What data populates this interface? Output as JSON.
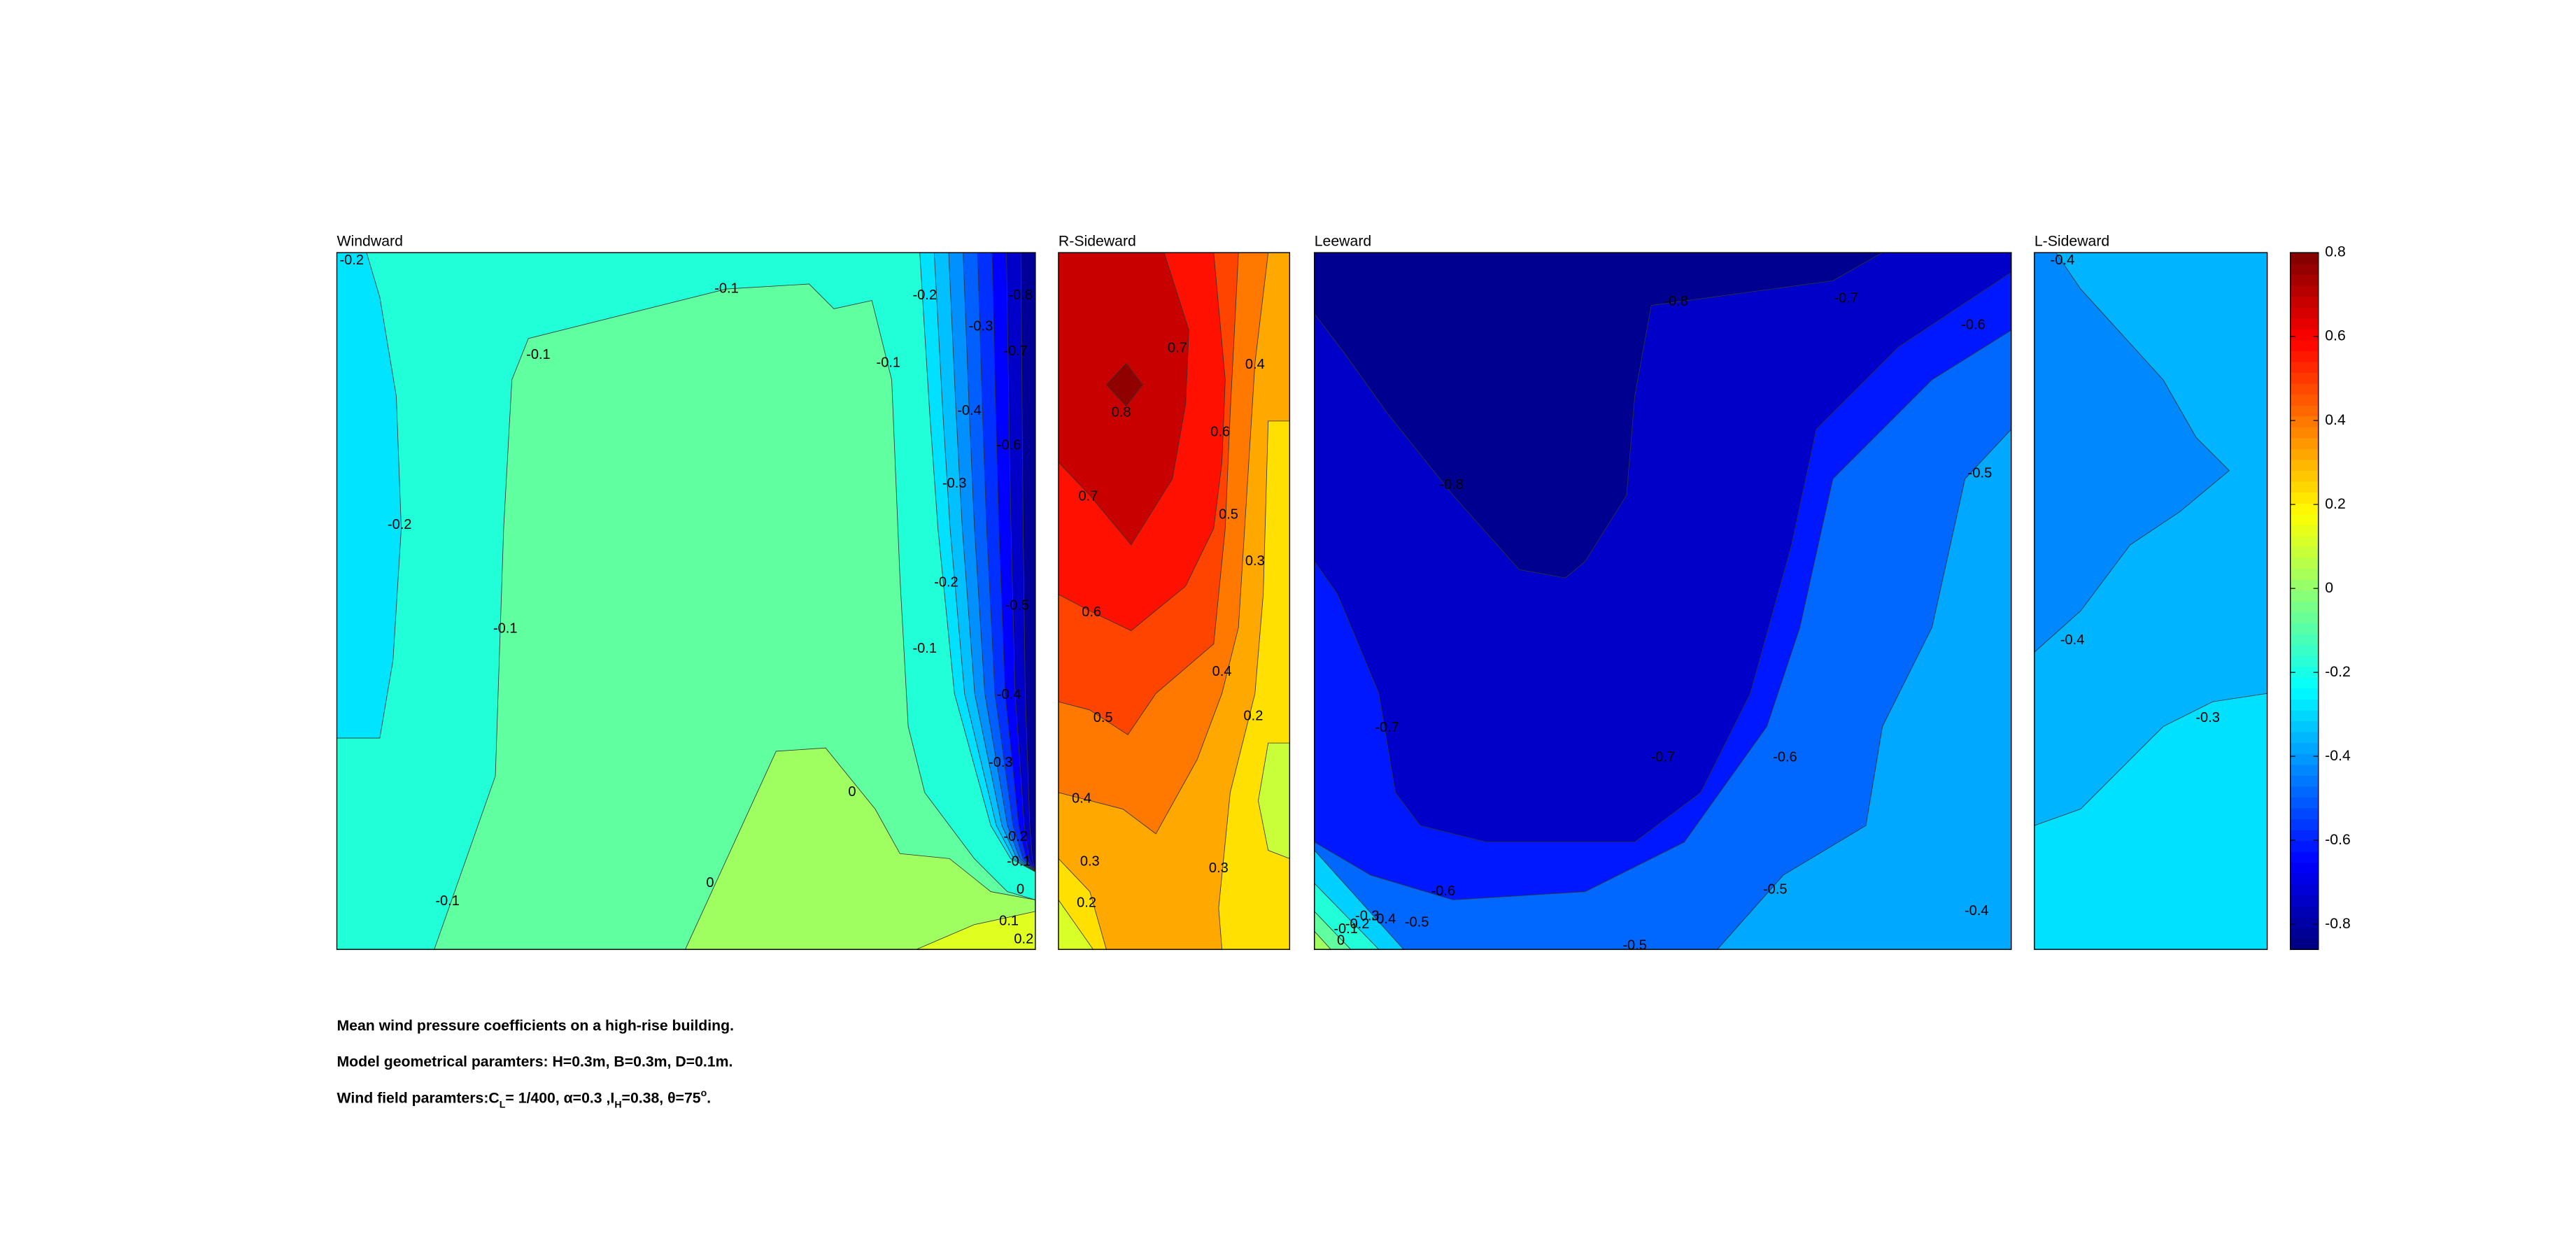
{
  "chart_data": [
    {
      "type": "contour",
      "title": "Windward",
      "contour_labels": [
        -0.2,
        -0.1,
        -0.1,
        -0.2,
        -0.3,
        -0.8,
        -0.7,
        -0.1,
        -0.4,
        -0.6,
        -0.3,
        -0.2,
        -0.2,
        -0.1,
        -0.1,
        -0.5,
        -0.4,
        -0.3,
        0,
        -0.2,
        -0.1,
        0,
        0,
        -0.1,
        0.1,
        0.2
      ]
    },
    {
      "type": "contour",
      "title": "R-Sideward",
      "contour_labels": [
        0.7,
        0.4,
        0.8,
        0.6,
        0.7,
        0.5,
        0.3,
        0.6,
        0.4,
        0.2,
        0.5,
        0.4,
        0.3,
        0.3,
        0.2
      ]
    },
    {
      "type": "contour",
      "title": "Leeward",
      "contour_labels": [
        -0.8,
        -0.7,
        -0.6,
        -0.8,
        -0.5,
        -0.7,
        -0.7,
        -0.6,
        -0.6,
        -0.5,
        -0.4,
        -0.5,
        -0.4,
        -0.3,
        -0.2,
        -0.1,
        0,
        -0.5
      ]
    },
    {
      "type": "contour",
      "title": "L-Sideward",
      "contour_labels": [
        -0.4,
        -0.4,
        -0.3
      ]
    },
    {
      "type": "colorbar",
      "ylim": [
        -0.86,
        0.8
      ],
      "yticks": [
        0.8,
        0.6,
        0.4,
        0.2,
        0,
        -0.2,
        -0.4,
        -0.6,
        -0.8
      ]
    }
  ],
  "caption": {
    "line1": "Mean wind pressure coefficients on a high-rise building.",
    "line2": "Model geometrical paramters: H=0.3m, B=0.3m, D=0.1m.",
    "line3": [
      "Wind field paramters:C",
      "L",
      "= 1/400, α=0.3 ,I",
      "H",
      "=0.38, θ=75",
      "o",
      "."
    ]
  }
}
